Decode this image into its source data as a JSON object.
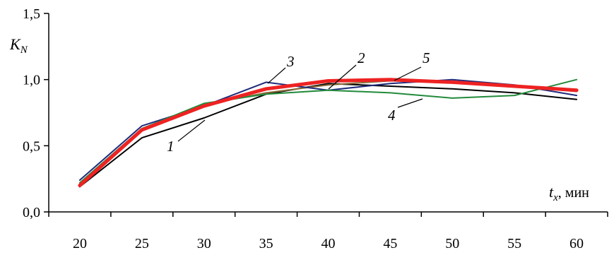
{
  "chart_data": {
    "type": "line",
    "x": [
      20,
      25,
      30,
      35,
      40,
      45,
      50,
      55,
      60
    ],
    "xlim": [
      17.5,
      62.5
    ],
    "ylim": [
      0,
      1.5
    ],
    "x_ticks": [
      "20",
      "25",
      "30",
      "35",
      "40",
      "45",
      "50",
      "55",
      "60"
    ],
    "y_ticks": [
      "0,0",
      "0,5",
      "1,0",
      "1,5"
    ],
    "y_tick_values": [
      0,
      0.5,
      1.0,
      1.5
    ],
    "ylabel": {
      "main": "K",
      "sub": "N"
    },
    "xlabel": {
      "main": "t",
      "sub": "x",
      "unit": ", мин"
    },
    "series": [
      {
        "label": "1",
        "color": "#000000",
        "width": 2,
        "values": [
          0.19,
          0.56,
          0.71,
          0.89,
          0.97,
          0.95,
          0.93,
          0.9,
          0.85
        ]
      },
      {
        "label": "2",
        "color": "#8b6b3a",
        "width": 2,
        "values": [
          0.21,
          0.63,
          0.81,
          0.9,
          0.96,
          0.99,
          0.98,
          0.95,
          0.91
        ]
      },
      {
        "label": "3",
        "color": "#1f2a7a",
        "width": 2,
        "values": [
          0.24,
          0.65,
          0.8,
          0.98,
          0.92,
          0.97,
          1.0,
          0.96,
          0.88
        ]
      },
      {
        "label": "4",
        "color": "#228b3b",
        "width": 2,
        "values": [
          0.22,
          0.63,
          0.82,
          0.89,
          0.92,
          0.9,
          0.86,
          0.88,
          1.0
        ]
      },
      {
        "label": "5",
        "color": "#ee2222",
        "width": 5,
        "values": [
          0.2,
          0.62,
          0.8,
          0.93,
          0.99,
          1.0,
          0.98,
          0.95,
          0.92
        ]
      }
    ]
  }
}
